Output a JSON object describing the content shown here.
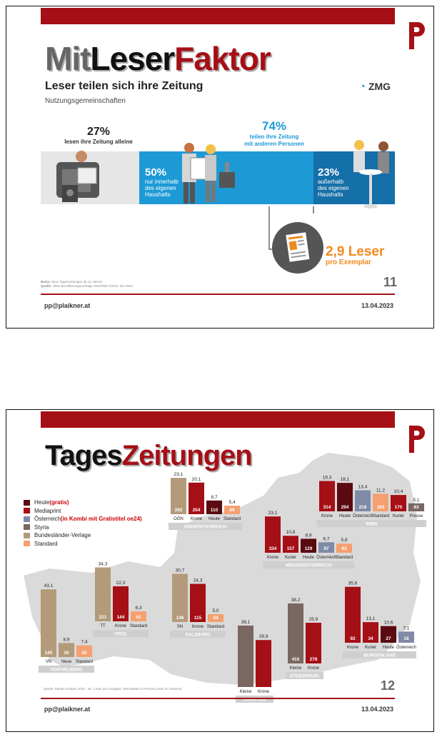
{
  "colors": {
    "brand_red": "#a50f16",
    "dark_red": "#8b0b11",
    "cyan": "#1d9ad6",
    "orange": "#f08a1d"
  },
  "slide1": {
    "title_parts": [
      "Mit",
      "Leser",
      "Faktor"
    ],
    "heading": "Leser teilen sich ihre Zeitung",
    "subheading": "Nutzungsgemeinschaften",
    "logo_text": "ZMG",
    "stat_alone": {
      "value": "27%",
      "text": "lesen ihre Zeitung alleine"
    },
    "stat_shared": {
      "value": "74%",
      "text_line1": "teilen ihre Zeitung",
      "text_line2": "mit anderen Personen"
    },
    "stat_inside": {
      "value": "50%",
      "l1": "nur innerhalb",
      "l2": "des eigenen",
      "l3": "Haushalts"
    },
    "stat_outside": {
      "value": "23%",
      "l1": "außerhalb",
      "l2": "des eigenen",
      "l3": "Haushalts"
    },
    "result": {
      "value": "2,9 Leser",
      "sub": "pro Exemplar"
    },
    "note_basis_label": "Basis:",
    "note_basis": "WLK Tageszeitungen ab 14 Jahren",
    "note_source_label": "Quelle:",
    "note_source": "ZMG Bevölkerungsumfrage 2022/NW ©2022, MA 2022",
    "page": "11",
    "footer_left": "pp@plaikner.at",
    "footer_right": "13.04.2023"
  },
  "slide2": {
    "title_parts": [
      "Tages",
      "Zeitungen"
    ],
    "legend": [
      {
        "label": "Heute ",
        "extra": "(gratis)",
        "color": "#5b0a10"
      },
      {
        "label": "Mediaprint",
        "extra": "",
        "color": "#a50f16"
      },
      {
        "label": "Österreich ",
        "extra": "(in Kombi mit Gratistitel oe24)",
        "color": "#7f8aa6"
      },
      {
        "label": "Styria",
        "extra": "",
        "color": "#7a6762"
      },
      {
        "label": "Bundesländer-Verlage",
        "extra": "",
        "color": "#b39a7a"
      },
      {
        "label": "Standard",
        "extra": "",
        "color": "#f4a070"
      }
    ],
    "note": "Quelle: Media-Analyse 2023 · Nr.: Leser pro Ausgabe, Reichweite in Prozent Leser im Tausend",
    "page": "12",
    "footer_left": "pp@plaikner.at",
    "footer_right": "13.04.2023"
  },
  "chart_data": {
    "type": "bar",
    "title": "TagesZeitungen",
    "groups": [
      {
        "region": "VORARLBERG",
        "bars": [
          {
            "name": "VN",
            "pct": 43.1,
            "pct_label": "43,1",
            "readers": "145",
            "publisher": "Bundesländer-Verlage"
          },
          {
            "name": "Neue",
            "pct": 8.9,
            "pct_label": "8,9",
            "readers": "30",
            "publisher": "Bundesländer-Verlage"
          },
          {
            "name": "Standard",
            "pct": 7.4,
            "pct_label": "7,4",
            "readers": "25",
            "publisher": "Standard"
          }
        ]
      },
      {
        "region": "TIROL",
        "bars": [
          {
            "name": "TT",
            "pct": 34.3,
            "pct_label": "34,3",
            "readers": "221",
            "publisher": "Bundesländer-Verlage"
          },
          {
            "name": "Krone",
            "pct": 22.3,
            "pct_label": "22,3",
            "readers": "144",
            "publisher": "Mediaprint"
          },
          {
            "name": "Standard",
            "pct": 6.3,
            "pct_label": "6,3",
            "readers": "41",
            "publisher": "Standard"
          }
        ]
      },
      {
        "region": "OBERÖSTERREICH",
        "bars": [
          {
            "name": "OÖN",
            "pct": 23.1,
            "pct_label": "23,1",
            "readers": "292",
            "publisher": "Bundesländer-Verlage"
          },
          {
            "name": "Krone",
            "pct": 20.1,
            "pct_label": "20,1",
            "readers": "254",
            "publisher": "Mediaprint"
          },
          {
            "name": "Heute",
            "pct": 8.7,
            "pct_label": "8,7",
            "readers": "110",
            "publisher": "Heute"
          },
          {
            "name": "Standard",
            "pct": 5.4,
            "pct_label": "5,4",
            "readers": "69",
            "publisher": "Standard"
          }
        ]
      },
      {
        "region": "SALZBURG",
        "bars": [
          {
            "name": "SN",
            "pct": 30.7,
            "pct_label": "30,7",
            "readers": "146",
            "publisher": "Bundesländer-Verlage"
          },
          {
            "name": "Krone",
            "pct": 24.3,
            "pct_label": "24,3",
            "readers": "115",
            "publisher": "Mediaprint"
          },
          {
            "name": "Standard",
            "pct": 5.0,
            "pct_label": "5,0",
            "readers": "24",
            "publisher": "Standard"
          }
        ]
      },
      {
        "region": "KÄRNTEN",
        "bars": [
          {
            "name": "Kleine",
            "pct": 39.1,
            "pct_label": "39,1",
            "readers": "",
            "publisher": "Styria"
          },
          {
            "name": "Krone",
            "pct": 29.9,
            "pct_label": "29,9",
            "readers": "",
            "publisher": "Mediaprint"
          }
        ]
      },
      {
        "region": "STEIERMARK",
        "bars": [
          {
            "name": "Kleine",
            "pct": 38.2,
            "pct_label": "38,2",
            "readers": "410",
            "publisher": "Styria"
          },
          {
            "name": "Krone",
            "pct": 25.9,
            "pct_label": "25,9",
            "readers": "278",
            "publisher": "Mediaprint"
          }
        ]
      },
      {
        "region": "NIEDERÖSTERREICH",
        "bars": [
          {
            "name": "Krone",
            "pct": 23.1,
            "pct_label": "23,1",
            "readers": "334",
            "publisher": "Mediaprint"
          },
          {
            "name": "Kurier",
            "pct": 10.8,
            "pct_label": "10,8",
            "readers": "157",
            "publisher": "Mediaprint"
          },
          {
            "name": "Heute",
            "pct": 8.9,
            "pct_label": "8,9",
            "readers": "129",
            "publisher": "Heute"
          },
          {
            "name": "Österreich",
            "pct": 6.7,
            "pct_label": "6,7",
            "readers": "97",
            "publisher": "Österreich"
          },
          {
            "name": "Standard",
            "pct": 5.8,
            "pct_label": "5,8",
            "readers": "83",
            "publisher": "Standard"
          }
        ]
      },
      {
        "region": "WIEN",
        "bars": [
          {
            "name": "Krone",
            "pct": 19.3,
            "pct_label": "19,3",
            "readers": "314",
            "publisher": "Mediaprint"
          },
          {
            "name": "Heute",
            "pct": 18.1,
            "pct_label": "18,1",
            "readers": "294",
            "publisher": "Heute"
          },
          {
            "name": "Österreich",
            "pct": 13.4,
            "pct_label": "13,4",
            "readers": "218",
            "publisher": "Österreich"
          },
          {
            "name": "Standard",
            "pct": 11.2,
            "pct_label": "11,2",
            "readers": "183",
            "publisher": "Standard"
          },
          {
            "name": "Kurier",
            "pct": 10.4,
            "pct_label": "10,4",
            "readers": "170",
            "publisher": "Mediaprint"
          },
          {
            "name": "Presse",
            "pct": 5.1,
            "pct_label": "5,1",
            "readers": "83",
            "publisher": "Styria"
          }
        ]
      },
      {
        "region": "BURGENLAND",
        "bars": [
          {
            "name": "Krone",
            "pct": 35.6,
            "pct_label": "35,6",
            "readers": "92",
            "publisher": "Mediaprint"
          },
          {
            "name": "Kurier",
            "pct": 13.1,
            "pct_label": "13,1",
            "readers": "34",
            "publisher": "Mediaprint"
          },
          {
            "name": "Heute",
            "pct": 10.6,
            "pct_label": "10,6",
            "readers": "27",
            "publisher": "Heute"
          },
          {
            "name": "Österreich",
            "pct": 7.1,
            "pct_label": "7,1",
            "readers": "18",
            "publisher": "Österreich"
          }
        ]
      }
    ]
  }
}
